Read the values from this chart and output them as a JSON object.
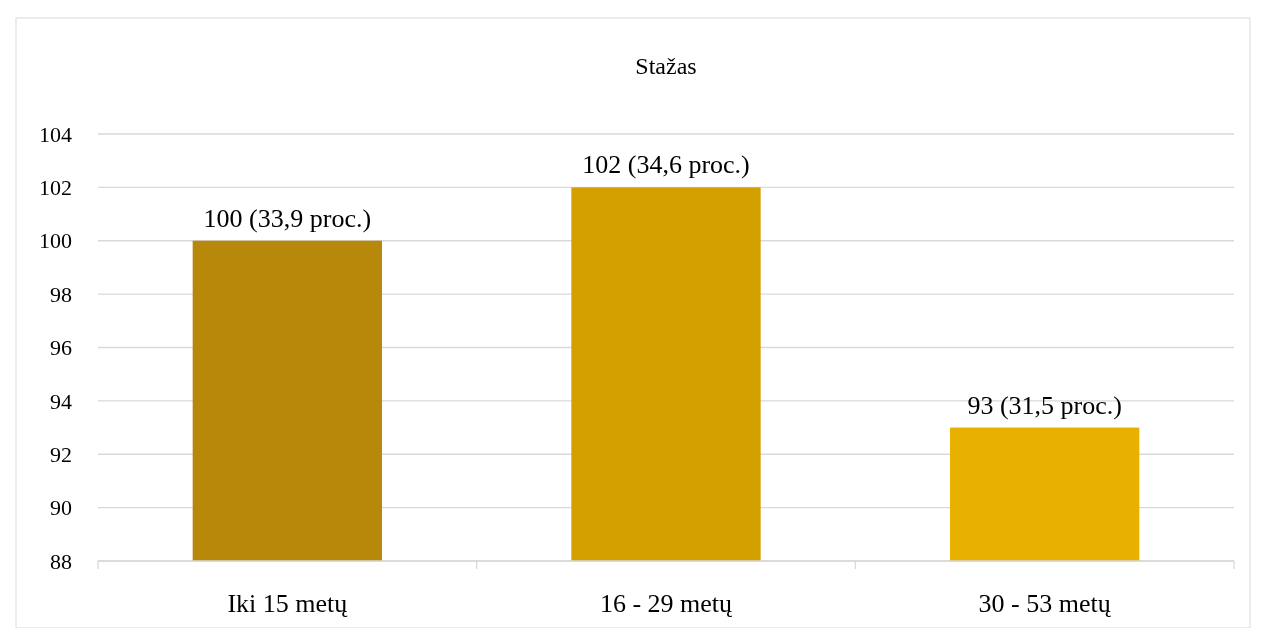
{
  "chart_data": {
    "type": "bar",
    "title": "Stažas",
    "categories": [
      "Iki 15 metų",
      "16 - 29 metų",
      "30 - 53 metų"
    ],
    "values": [
      100,
      102,
      93
    ],
    "colors": [
      "#b8880a",
      "#d4a000",
      "#e8b000"
    ],
    "value_labels": [
      "100 (33,9 proc.)",
      "102 (34,6 proc.)",
      "93 (31,5 proc.)"
    ],
    "ylim": [
      88,
      104
    ],
    "yticks": [
      88,
      90,
      92,
      94,
      96,
      98,
      100,
      102,
      104
    ],
    "grid": "y"
  }
}
